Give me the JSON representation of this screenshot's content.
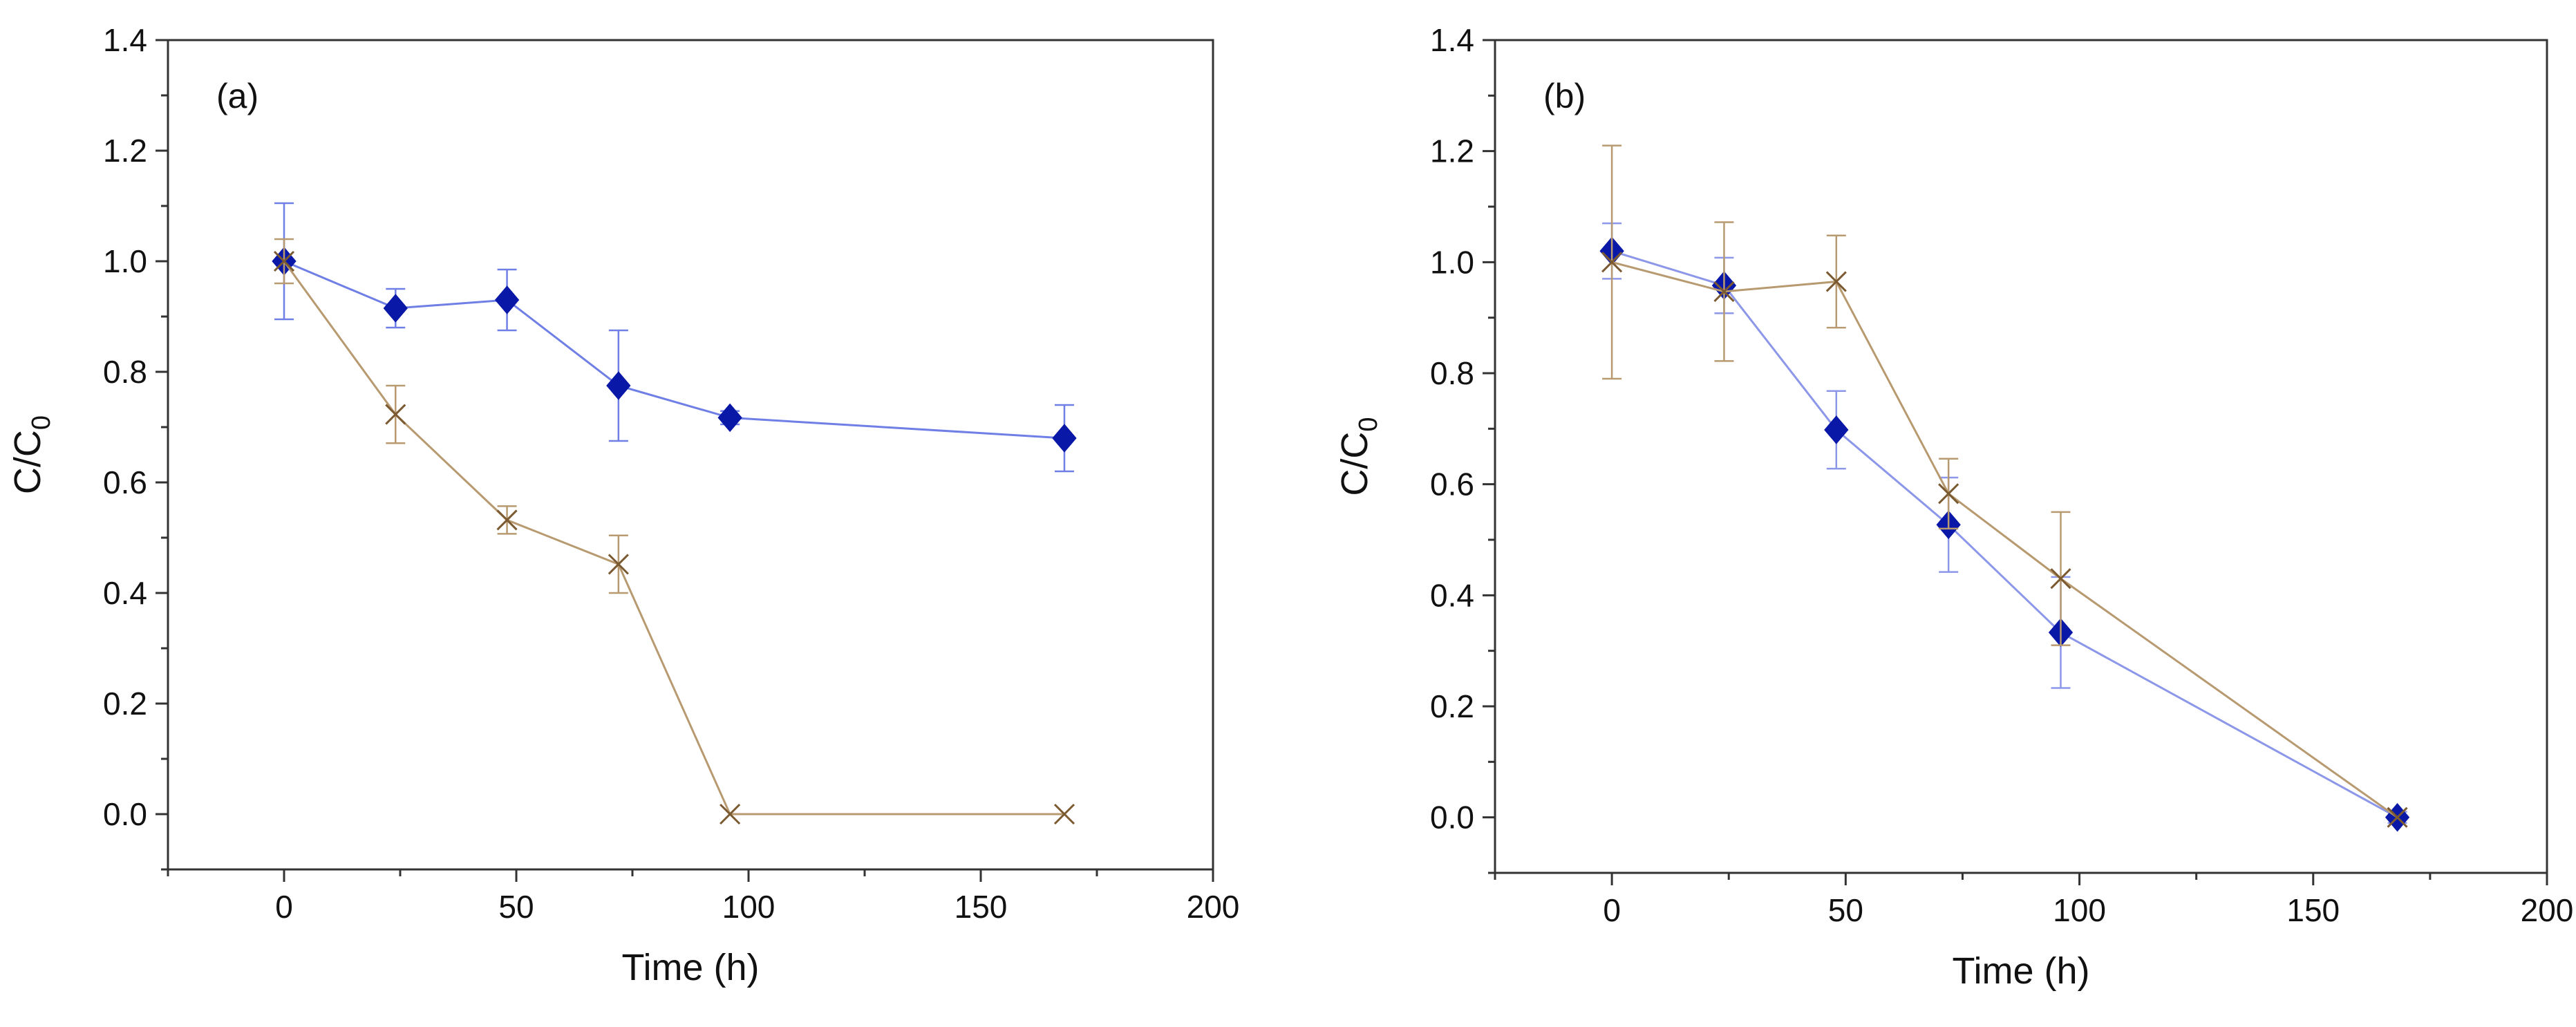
{
  "chart_data": [
    {
      "type": "line",
      "panel_label": "(a)",
      "xlabel": "Time (h)",
      "ylabel_main": "C/C",
      "ylabel_sub": "0",
      "xlim": [
        -25,
        200
      ],
      "ylim": [
        -0.1,
        1.4
      ],
      "xticks": [
        0,
        50,
        100,
        150,
        200
      ],
      "yticks": [
        0.0,
        0.2,
        0.4,
        0.6,
        0.8,
        1.0,
        1.2,
        1.4
      ],
      "ytick_labels": [
        "0.0",
        "0.2",
        "0.4",
        "0.6",
        "0.8",
        "1.0",
        "1.2",
        "1.4"
      ],
      "series": [
        {
          "marker": "diamond",
          "color": "#0a18a8",
          "line_color": "#6f7fe6",
          "x": [
            0,
            24,
            48,
            72,
            96,
            168
          ],
          "y": [
            1.0,
            0.915,
            0.93,
            0.775,
            0.717,
            0.68
          ],
          "err": [
            0.105,
            0.035,
            0.055,
            0.1,
            0.012,
            0.06
          ]
        },
        {
          "marker": "x",
          "color": "#7b5a32",
          "line_color": "#b89a70",
          "x": [
            0,
            24,
            48,
            72,
            96,
            168
          ],
          "y": [
            1.0,
            0.723,
            0.532,
            0.452,
            0.0,
            0.0
          ],
          "err": [
            0.04,
            0.052,
            0.025,
            0.052,
            0.0,
            0.0
          ]
        }
      ]
    },
    {
      "type": "line",
      "panel_label": "(b)",
      "xlabel": "Time (h)",
      "ylabel_main": "C/C",
      "ylabel_sub": "0",
      "xlim": [
        -25,
        200
      ],
      "ylim": [
        -0.1,
        1.4
      ],
      "xticks": [
        0,
        50,
        100,
        150,
        200
      ],
      "yticks": [
        0.0,
        0.2,
        0.4,
        0.6,
        0.8,
        1.0,
        1.2,
        1.4
      ],
      "ytick_labels": [
        "0.0",
        "0.2",
        "0.4",
        "0.6",
        "0.8",
        "1.0",
        "1.2",
        "1.4"
      ],
      "series": [
        {
          "marker": "diamond",
          "color": "#0a18a8",
          "line_color": "#8c97ea",
          "x": [
            0,
            24,
            48,
            72,
            96,
            168
          ],
          "y": [
            1.02,
            0.958,
            0.698,
            0.527,
            0.333,
            0.0
          ],
          "err": [
            0.05,
            0.05,
            0.07,
            0.085,
            0.1,
            0.01
          ]
        },
        {
          "marker": "x",
          "color": "#7b5a32",
          "line_color": "#b89a70",
          "x": [
            0,
            24,
            48,
            72,
            96,
            168
          ],
          "y": [
            1.0,
            0.947,
            0.965,
            0.583,
            0.43,
            0.0
          ],
          "err": [
            0.21,
            0.125,
            0.083,
            0.063,
            0.12,
            0.0
          ]
        }
      ]
    }
  ]
}
